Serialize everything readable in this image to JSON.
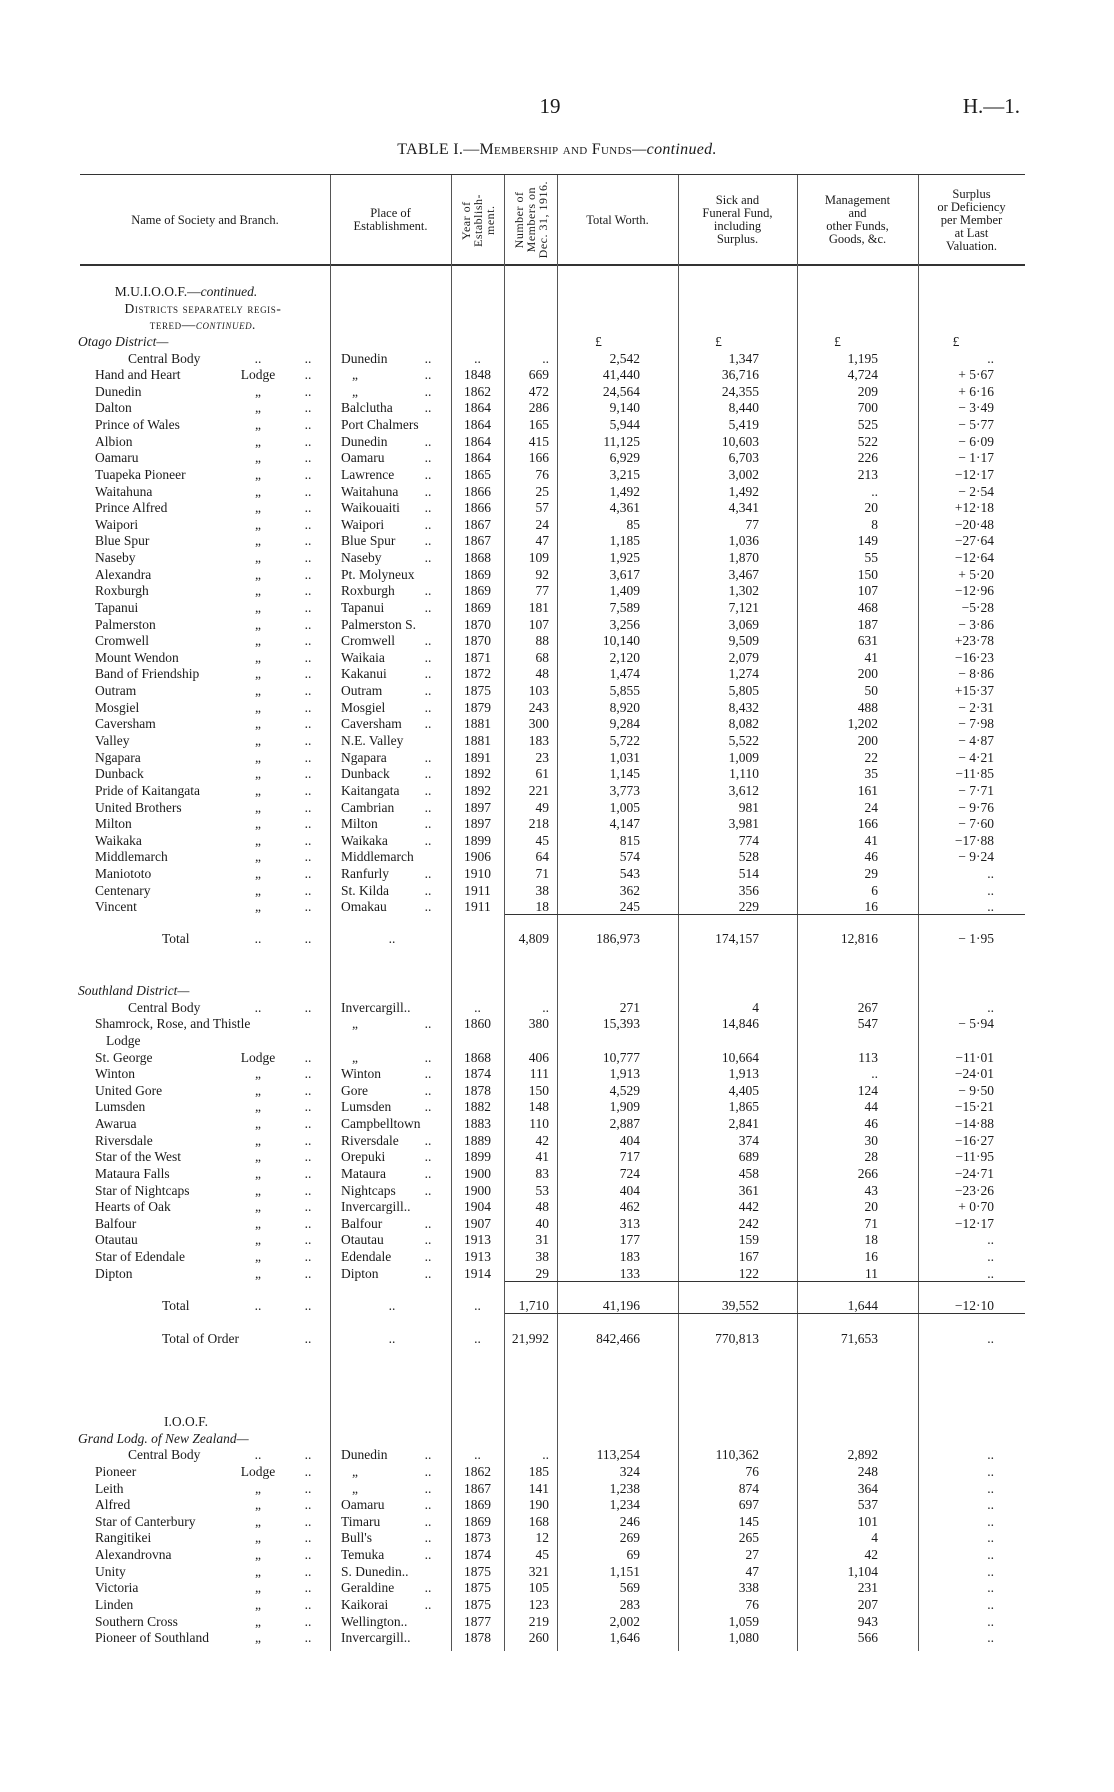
{
  "page": {
    "number": "19",
    "ref": "H.—1."
  },
  "table": {
    "title_main": "TABLE I.—",
    "title_sc": "Membership and Funds",
    "title_em": "—continued.",
    "currency": "£",
    "columns": [
      {
        "key": "name",
        "lines": [
          "Name of Society and Branch."
        ]
      },
      {
        "key": "place",
        "lines": [
          "Place of",
          "Establishment."
        ]
      },
      {
        "key": "year",
        "lines": [
          "Year of",
          "Establish-",
          "ment."
        ],
        "rotated": true
      },
      {
        "key": "members",
        "lines": [
          "Number of",
          "Members on",
          "Dec. 31, 1916."
        ],
        "rotated": true
      },
      {
        "key": "total",
        "lines": [
          "Total Worth."
        ]
      },
      {
        "key": "sick",
        "lines": [
          "Sick and",
          "Funeral Fund,",
          "including",
          "Surplus."
        ]
      },
      {
        "key": "mgmt",
        "lines": [
          "Management",
          "and",
          "other Funds,",
          "Goods, &c."
        ]
      },
      {
        "key": "surplus",
        "lines": [
          "Surplus",
          "or Deficiency",
          "per Member",
          "at Last",
          "Valuation."
        ]
      }
    ]
  },
  "sections": [
    {
      "headings": [
        {
          "role": "society",
          "text": "M.U.I.O.O.F.—",
          "em": "continued."
        },
        {
          "role": "group",
          "text": "Districts separately regis-"
        },
        {
          "role": "group",
          "text": "tered—",
          "em": "continued."
        },
        {
          "role": "district",
          "text": "Otago District—"
        }
      ],
      "units_row": true,
      "rows": [
        {
          "n": "Central Body",
          "s": "..",
          "d": "..",
          "p": "Dunedin",
          "pd": "..",
          "y": "..",
          "m": "..",
          "t": "2,542",
          "f": "1,347",
          "g": "1,195",
          "v": ".."
        },
        {
          "n": "Hand and Heart",
          "s": "Lodge",
          "d": "..",
          "p": "„",
          "pd": "..",
          "y": "1848",
          "m": "669",
          "t": "41,440",
          "f": "36,716",
          "g": "4,724",
          "v": "+ 5·67"
        },
        {
          "n": "Dunedin",
          "s": "„",
          "d": "..",
          "p": "„",
          "pd": "..",
          "y": "1862",
          "m": "472",
          "t": "24,564",
          "f": "24,355",
          "g": "209",
          "v": "+ 6·16"
        },
        {
          "n": "Dalton",
          "s": "„",
          "d": "..",
          "p": "Balclutha",
          "pd": "..",
          "y": "1864",
          "m": "286",
          "t": "9,140",
          "f": "8,440",
          "g": "700",
          "v": "− 3·49"
        },
        {
          "n": "Prince of Wales",
          "s": "„",
          "d": "..",
          "p": "Port Chalmers",
          "y": "1864",
          "m": "165",
          "t": "5,944",
          "f": "5,419",
          "g": "525",
          "v": "− 5·77"
        },
        {
          "n": "Albion",
          "s": "„",
          "d": "..",
          "p": "Dunedin",
          "pd": "..",
          "y": "1864",
          "m": "415",
          "t": "11,125",
          "f": "10,603",
          "g": "522",
          "v": "− 6·09"
        },
        {
          "n": "Oamaru",
          "s": "„",
          "d": "..",
          "p": "Oamaru",
          "pd": "..",
          "y": "1864",
          "m": "166",
          "t": "6,929",
          "f": "6,703",
          "g": "226",
          "v": "− 1·17"
        },
        {
          "n": "Tuapeka Pioneer",
          "s": "„",
          "d": "..",
          "p": "Lawrence",
          "pd": "..",
          "y": "1865",
          "m": "76",
          "t": "3,215",
          "f": "3,002",
          "g": "213",
          "v": "−12·17"
        },
        {
          "n": "Waitahuna",
          "s": "„",
          "d": "..",
          "p": "Waitahuna",
          "pd": "..",
          "y": "1866",
          "m": "25",
          "t": "1,492",
          "f": "1,492",
          "g": "..",
          "v": "− 2·54"
        },
        {
          "n": "Prince Alfred",
          "s": "„",
          "d": "..",
          "p": "Waikouaiti",
          "pd": "..",
          "y": "1866",
          "m": "57",
          "t": "4,361",
          "f": "4,341",
          "g": "20",
          "v": "+12·18"
        },
        {
          "n": "Waipori",
          "s": "„",
          "d": "..",
          "p": "Waipori",
          "pd": "..",
          "y": "1867",
          "m": "24",
          "t": "85",
          "f": "77",
          "g": "8",
          "v": "−20·48"
        },
        {
          "n": "Blue Spur",
          "s": "„",
          "d": "..",
          "p": "Blue Spur",
          "pd": "..",
          "y": "1867",
          "m": "47",
          "t": "1,185",
          "f": "1,036",
          "g": "149",
          "v": "−27·64"
        },
        {
          "n": "Naseby",
          "s": "„",
          "d": "..",
          "p": "Naseby",
          "pd": "..",
          "y": "1868",
          "m": "109",
          "t": "1,925",
          "f": "1,870",
          "g": "55",
          "v": "−12·64"
        },
        {
          "n": "Alexandra",
          "s": "„",
          "d": "..",
          "p": "Pt. Molyneux",
          "y": "1869",
          "m": "92",
          "t": "3,617",
          "f": "3,467",
          "g": "150",
          "v": "+ 5·20"
        },
        {
          "n": "Roxburgh",
          "s": "„",
          "d": "..",
          "p": "Roxburgh",
          "pd": "..",
          "y": "1869",
          "m": "77",
          "t": "1,409",
          "f": "1,302",
          "g": "107",
          "v": "−12·96"
        },
        {
          "n": "Tapanui",
          "s": "„",
          "d": "..",
          "p": "Tapanui",
          "pd": "..",
          "y": "1869",
          "m": "181",
          "t": "7,589",
          "f": "7,121",
          "g": "468",
          "v": "−5·28"
        },
        {
          "n": "Palmerston",
          "s": "„",
          "d": "..",
          "p": "Palmerston S.",
          "y": "1870",
          "m": "107",
          "t": "3,256",
          "f": "3,069",
          "g": "187",
          "v": "− 3·86"
        },
        {
          "n": "Cromwell",
          "s": "„",
          "d": "..",
          "p": "Cromwell",
          "pd": "..",
          "y": "1870",
          "m": "88",
          "t": "10,140",
          "f": "9,509",
          "g": "631",
          "v": "+23·78"
        },
        {
          "n": "Mount Wendon",
          "s": "„",
          "d": "..",
          "p": "Waikaia",
          "pd": "..",
          "y": "1871",
          "m": "68",
          "t": "2,120",
          "f": "2,079",
          "g": "41",
          "v": "−16·23"
        },
        {
          "n": "Band of Friendship",
          "s": "„",
          "d": "..",
          "p": "Kakanui",
          "pd": "..",
          "y": "1872",
          "m": "48",
          "t": "1,474",
          "f": "1,274",
          "g": "200",
          "v": "− 8·86"
        },
        {
          "n": "Outram",
          "s": "„",
          "d": "..",
          "p": "Outram",
          "pd": "..",
          "y": "1875",
          "m": "103",
          "t": "5,855",
          "f": "5,805",
          "g": "50",
          "v": "+15·37"
        },
        {
          "n": "Mosgiel",
          "s": "„",
          "d": "..",
          "p": "Mosgiel",
          "pd": "..",
          "y": "1879",
          "m": "243",
          "t": "8,920",
          "f": "8,432",
          "g": "488",
          "v": "− 2·31"
        },
        {
          "n": "Caversham",
          "s": "„",
          "d": "..",
          "p": "Caversham",
          "pd": "..",
          "y": "1881",
          "m": "300",
          "t": "9,284",
          "f": "8,082",
          "g": "1,202",
          "v": "− 7·98"
        },
        {
          "n": "Valley",
          "s": "„",
          "d": "..",
          "p": "N.E. Valley",
          "y": "1881",
          "m": "183",
          "t": "5,722",
          "f": "5,522",
          "g": "200",
          "v": "− 4·87"
        },
        {
          "n": "Ngapara",
          "s": "„",
          "d": "..",
          "p": "Ngapara",
          "pd": "..",
          "y": "1891",
          "m": "23",
          "t": "1,031",
          "f": "1,009",
          "g": "22",
          "v": "− 4·21"
        },
        {
          "n": "Dunback",
          "s": "„",
          "d": "..",
          "p": "Dunback",
          "pd": "..",
          "y": "1892",
          "m": "61",
          "t": "1,145",
          "f": "1,110",
          "g": "35",
          "v": "−11·85"
        },
        {
          "n": "Pride of Kaitangata",
          "s": "„",
          "d": "..",
          "p": "Kaitangata",
          "pd": "..",
          "y": "1892",
          "m": "221",
          "t": "3,773",
          "f": "3,612",
          "g": "161",
          "v": "− 7·71"
        },
        {
          "n": "United Brothers",
          "s": "„",
          "d": "..",
          "p": "Cambrian",
          "pd": "..",
          "y": "1897",
          "m": "49",
          "t": "1,005",
          "f": "981",
          "g": "24",
          "v": "− 9·76"
        },
        {
          "n": "Milton",
          "s": "„",
          "d": "..",
          "p": "Milton",
          "pd": "..",
          "y": "1897",
          "m": "218",
          "t": "4,147",
          "f": "3,981",
          "g": "166",
          "v": "− 7·60"
        },
        {
          "n": "Waikaka",
          "s": "„",
          "d": "..",
          "p": "Waikaka",
          "pd": "..",
          "y": "1899",
          "m": "45",
          "t": "815",
          "f": "774",
          "g": "41",
          "v": "−17·88"
        },
        {
          "n": "Middlemarch",
          "s": "„",
          "d": "..",
          "p": "Middlemarch",
          "y": "1906",
          "m": "64",
          "t": "574",
          "f": "528",
          "g": "46",
          "v": "− 9·24"
        },
        {
          "n": "Maniototo",
          "s": "„",
          "d": "..",
          "p": "Ranfurly",
          "pd": "..",
          "y": "1910",
          "m": "71",
          "t": "543",
          "f": "514",
          "g": "29",
          "v": ".."
        },
        {
          "n": "Centenary",
          "s": "„",
          "d": "..",
          "p": "St. Kilda",
          "pd": "..",
          "y": "1911",
          "m": "38",
          "t": "362",
          "f": "356",
          "g": "6",
          "v": ".."
        },
        {
          "n": "Vincent",
          "s": "„",
          "d": "..",
          "p": "Omakau",
          "pd": "..",
          "y": "1911",
          "m": "18",
          "t": "245",
          "f": "229",
          "g": "16",
          "v": ".."
        }
      ],
      "totals": [
        {
          "n": "Total",
          "s": "..",
          "d": "..",
          "pc": "..",
          "m": "4,809",
          "t": "186,973",
          "f": "174,157",
          "g": "12,816",
          "v": "− 1·95"
        }
      ]
    },
    {
      "headings": [
        {
          "role": "district",
          "text": "Southland District—"
        }
      ],
      "rows": [
        {
          "n": "Central Body",
          "s": "..",
          "d": "..",
          "p": "Invercargill..",
          "y": "..",
          "m": "..",
          "t": "271",
          "f": "4",
          "g": "267",
          "v": ".."
        },
        {
          "n": "Shamrock, Rose, and Thistle",
          "p": "„",
          "pd": "..",
          "y": "1860",
          "m": "380",
          "t": "15,393",
          "f": "14,846",
          "g": "547",
          "v": "− 5·94"
        },
        {
          "n": "Lodge"
        },
        {
          "n": "St. George",
          "s": "Lodge",
          "d": "..",
          "p": "„",
          "pd": "..",
          "y": "1868",
          "m": "406",
          "t": "10,777",
          "f": "10,664",
          "g": "113",
          "v": "−11·01"
        },
        {
          "n": "Winton",
          "s": "„",
          "d": "..",
          "p": "Winton",
          "pd": "..",
          "y": "1874",
          "m": "111",
          "t": "1,913",
          "f": "1,913",
          "g": "..",
          "v": "−24·01"
        },
        {
          "n": "United Gore",
          "s": "„",
          "d": "..",
          "p": "Gore",
          "pd": "..",
          "y": "1878",
          "m": "150",
          "t": "4,529",
          "f": "4,405",
          "g": "124",
          "v": "− 9·50"
        },
        {
          "n": "Lumsden",
          "s": "„",
          "d": "..",
          "p": "Lumsden",
          "pd": "..",
          "y": "1882",
          "m": "148",
          "t": "1,909",
          "f": "1,865",
          "g": "44",
          "v": "−15·21"
        },
        {
          "n": "Awarua",
          "s": "„",
          "d": "..",
          "p": "Campbelltown",
          "y": "1883",
          "m": "110",
          "t": "2,887",
          "f": "2,841",
          "g": "46",
          "v": "−14·88"
        },
        {
          "n": "Riversdale",
          "s": "„",
          "d": "..",
          "p": "Riversdale",
          "pd": "..",
          "y": "1889",
          "m": "42",
          "t": "404",
          "f": "374",
          "g": "30",
          "v": "−16·27"
        },
        {
          "n": "Star of the West",
          "s": "„",
          "d": "..",
          "p": "Orepuki",
          "pd": "..",
          "y": "1899",
          "m": "41",
          "t": "717",
          "f": "689",
          "g": "28",
          "v": "−11·95"
        },
        {
          "n": "Mataura Falls",
          "s": "„",
          "d": "..",
          "p": "Mataura",
          "pd": "..",
          "y": "1900",
          "m": "83",
          "t": "724",
          "f": "458",
          "g": "266",
          "v": "−24·71"
        },
        {
          "n": "Star of Nightcaps",
          "s": "„",
          "d": "..",
          "p": "Nightcaps",
          "pd": "..",
          "y": "1900",
          "m": "53",
          "t": "404",
          "f": "361",
          "g": "43",
          "v": "−23·26"
        },
        {
          "n": "Hearts of Oak",
          "s": "„",
          "d": "..",
          "p": "Invercargill..",
          "y": "1904",
          "m": "48",
          "t": "462",
          "f": "442",
          "g": "20",
          "v": "+ 0·70"
        },
        {
          "n": "Balfour",
          "s": "„",
          "d": "..",
          "p": "Balfour",
          "pd": "..",
          "y": "1907",
          "m": "40",
          "t": "313",
          "f": "242",
          "g": "71",
          "v": "−12·17"
        },
        {
          "n": "Otautau",
          "s": "„",
          "d": "..",
          "p": "Otautau",
          "pd": "..",
          "y": "1913",
          "m": "31",
          "t": "177",
          "f": "159",
          "g": "18",
          "v": ".."
        },
        {
          "n": "Star of Edendale",
          "s": "„",
          "d": "..",
          "p": "Edendale",
          "pd": "..",
          "y": "1913",
          "m": "38",
          "t": "183",
          "f": "167",
          "g": "16",
          "v": ".."
        },
        {
          "n": "Dipton",
          "s": "„",
          "d": "..",
          "p": "Dipton",
          "pd": "..",
          "y": "1914",
          "m": "29",
          "t": "133",
          "f": "122",
          "g": "11",
          "v": ".."
        }
      ],
      "totals": [
        {
          "n": "Total",
          "s": "..",
          "d": "..",
          "pc": "..",
          "y": "..",
          "m": "1,710",
          "t": "41,196",
          "f": "39,552",
          "g": "1,644",
          "v": "−12·10"
        },
        {
          "n": "Total of Order",
          "d": "..",
          "pc": "..",
          "y": "..",
          "m": "21,992",
          "t": "842,466",
          "f": "770,813",
          "g": "71,653",
          "v": ".."
        }
      ]
    },
    {
      "headings": [
        {
          "role": "society",
          "text": "I.O.O.F."
        },
        {
          "role": "district",
          "text": "Grand Lodg. of New Zealand—"
        }
      ],
      "rows": [
        {
          "n": "Central Body",
          "s": "..",
          "d": "..",
          "p": "Dunedin",
          "pd": "..",
          "y": "..",
          "m": "..",
          "t": "113,254",
          "f": "110,362",
          "g": "2,892",
          "v": ".."
        },
        {
          "n": "Pioneer",
          "s": "Lodge",
          "d": "..",
          "p": "„",
          "pd": "..",
          "y": "1862",
          "m": "185",
          "t": "324",
          "f": "76",
          "g": "248",
          "v": ".."
        },
        {
          "n": "Leith",
          "s": "„",
          "d": "..",
          "p": "„",
          "pd": "..",
          "y": "1867",
          "m": "141",
          "t": "1,238",
          "f": "874",
          "g": "364",
          "v": ".."
        },
        {
          "n": "Alfred",
          "s": "„",
          "d": "..",
          "p": "Oamaru",
          "pd": "..",
          "y": "1869",
          "m": "190",
          "t": "1,234",
          "f": "697",
          "g": "537",
          "v": ".."
        },
        {
          "n": "Star of Canterbury",
          "s": "„",
          "d": "..",
          "p": "Timaru",
          "pd": "..",
          "y": "1869",
          "m": "168",
          "t": "246",
          "f": "145",
          "g": "101",
          "v": ".."
        },
        {
          "n": "Rangitikei",
          "s": "„",
          "d": "..",
          "p": "Bull's",
          "pd": "..",
          "y": "1873",
          "m": "12",
          "t": "269",
          "f": "265",
          "g": "4",
          "v": ".."
        },
        {
          "n": "Alexandrovna",
          "s": "„",
          "d": "..",
          "p": "Temuka",
          "pd": "..",
          "y": "1874",
          "m": "45",
          "t": "69",
          "f": "27",
          "g": "42",
          "v": ".."
        },
        {
          "n": "Unity",
          "s": "„",
          "d": "..",
          "p": "S. Dunedin..",
          "y": "1875",
          "m": "321",
          "t": "1,151",
          "f": "47",
          "g": "1,104",
          "v": ".."
        },
        {
          "n": "Victoria",
          "s": "„",
          "d": "..",
          "p": "Geraldine",
          "pd": "..",
          "y": "1875",
          "m": "105",
          "t": "569",
          "f": "338",
          "g": "231",
          "v": ".."
        },
        {
          "n": "Linden",
          "s": "„",
          "d": "..",
          "p": "Kaikorai",
          "pd": "..",
          "y": "1875",
          "m": "123",
          "t": "283",
          "f": "76",
          "g": "207",
          "v": ".."
        },
        {
          "n": "Southern Cross",
          "s": "„",
          "d": "..",
          "p": "Wellington..",
          "y": "1877",
          "m": "219",
          "t": "2,002",
          "f": "1,059",
          "g": "943",
          "v": ".."
        },
        {
          "n": "Pioneer of Southland",
          "s": "„",
          "d": "..",
          "p": "Invercargill..",
          "y": "1878",
          "m": "260",
          "t": "1,646",
          "f": "1,080",
          "g": "566",
          "v": ".."
        }
      ],
      "totals": []
    }
  ]
}
